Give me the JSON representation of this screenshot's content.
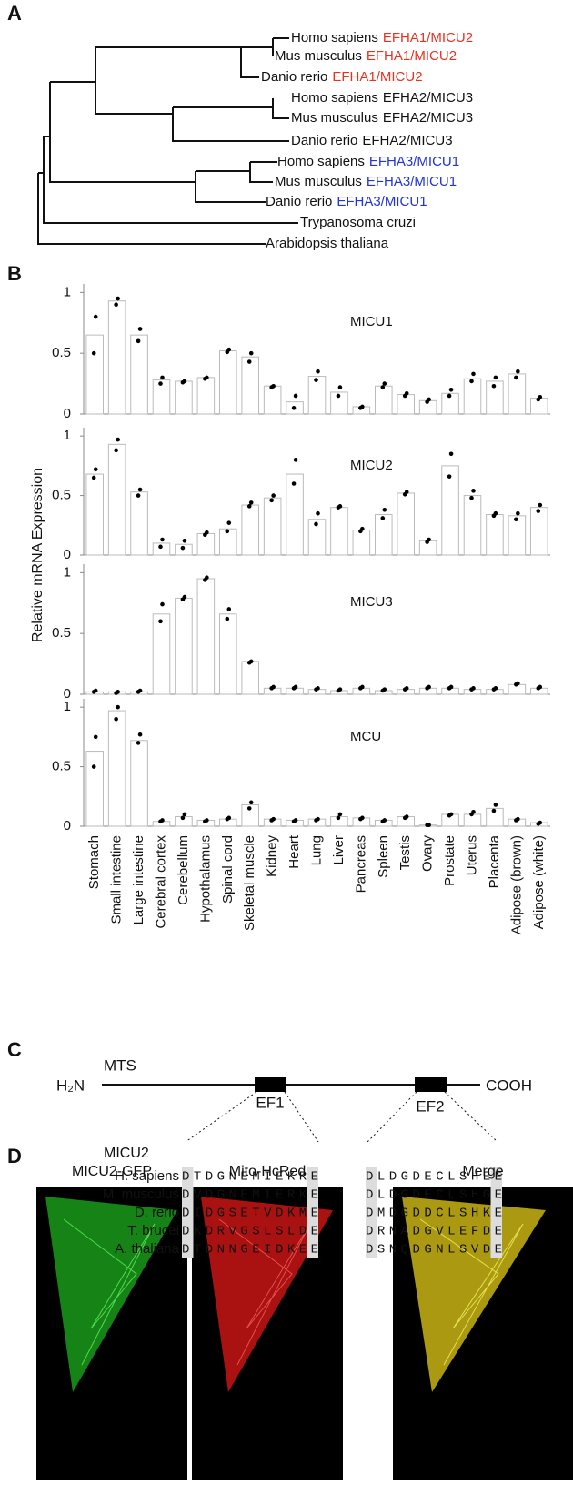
{
  "panel_labels": {
    "a": "A",
    "b": "B",
    "c": "C",
    "d": "D"
  },
  "tree": {
    "leaves": [
      {
        "species": "Homo sapiens",
        "gene": "EFHA1/MICU2",
        "gene_color": "#e8321e"
      },
      {
        "species": "Mus musculus",
        "gene": "EFHA1/MICU2",
        "gene_color": "#e8321e"
      },
      {
        "species": "Danio rerio",
        "gene": "EFHA1/MICU2",
        "gene_color": "#e8321e"
      },
      {
        "species": "Homo sapiens",
        "gene": "EFHA2/MICU3",
        "gene_color": "#111111"
      },
      {
        "species": "Mus musculus",
        "gene": "EFHA2/MICU3",
        "gene_color": "#111111"
      },
      {
        "species": "Danio rerio",
        "gene": "EFHA2/MICU3",
        "gene_color": "#111111"
      },
      {
        "species": "Homo sapiens",
        "gene": "EFHA3/MICU1",
        "gene_color": "#2233dd"
      },
      {
        "species": "Mus musculus",
        "gene": "EFHA3/MICU1",
        "gene_color": "#2233dd"
      },
      {
        "species": "Danio rerio",
        "gene": "EFHA3/MICU1",
        "gene_color": "#2233dd"
      },
      {
        "species": "Trypanosoma cruzi"
      },
      {
        "species": "Arabidopsis thaliana"
      }
    ]
  },
  "panel_b_y_label": "Relative  mRNA Expression",
  "chart_data": [
    {
      "type": "bar",
      "title": "MICU1",
      "ylim": [
        0,
        1.07
      ],
      "yticks": [
        0,
        0.5,
        1
      ],
      "values": [
        0.65,
        0.93,
        0.65,
        0.28,
        0.27,
        0.3,
        0.52,
        0.47,
        0.23,
        0.1,
        0.31,
        0.18,
        0.06,
        0.23,
        0.16,
        0.11,
        0.17,
        0.29,
        0.27,
        0.33,
        0.13
      ],
      "replicates": [
        [
          0.8,
          0.5
        ],
        [
          0.95,
          0.9
        ],
        [
          0.7,
          0.6
        ],
        [
          0.3,
          0.25
        ],
        [
          0.27,
          0.26
        ],
        [
          0.3,
          0.29
        ],
        [
          0.53,
          0.51
        ],
        [
          0.5,
          0.43
        ],
        [
          0.23,
          0.22
        ],
        [
          0.15,
          0.05
        ],
        [
          0.35,
          0.28
        ],
        [
          0.22,
          0.15
        ],
        [
          0.06,
          0.05
        ],
        [
          0.25,
          0.22
        ],
        [
          0.17,
          0.15
        ],
        [
          0.12,
          0.1
        ],
        [
          0.2,
          0.15
        ],
        [
          0.33,
          0.27
        ],
        [
          0.3,
          0.23
        ],
        [
          0.35,
          0.3
        ],
        [
          0.14,
          0.12
        ]
      ]
    },
    {
      "type": "bar",
      "title": "MICU2",
      "ylim": [
        0,
        1.07
      ],
      "yticks": [
        0,
        0.5,
        1
      ],
      "values": [
        0.68,
        0.93,
        0.53,
        0.1,
        0.09,
        0.18,
        0.22,
        0.42,
        0.48,
        0.68,
        0.3,
        0.4,
        0.21,
        0.34,
        0.52,
        0.12,
        0.75,
        0.5,
        0.34,
        0.33,
        0.4
      ],
      "replicates": [
        [
          0.72,
          0.65
        ],
        [
          0.97,
          0.88
        ],
        [
          0.55,
          0.5
        ],
        [
          0.13,
          0.07
        ],
        [
          0.12,
          0.06
        ],
        [
          0.19,
          0.17
        ],
        [
          0.27,
          0.2
        ],
        [
          0.44,
          0.41
        ],
        [
          0.5,
          0.46
        ],
        [
          0.8,
          0.6
        ],
        [
          0.35,
          0.26
        ],
        [
          0.41,
          0.4
        ],
        [
          0.22,
          0.2
        ],
        [
          0.38,
          0.31
        ],
        [
          0.53,
          0.51
        ],
        [
          0.13,
          0.11
        ],
        [
          0.85,
          0.66
        ],
        [
          0.54,
          0.48
        ],
        [
          0.35,
          0.33
        ],
        [
          0.35,
          0.3
        ],
        [
          0.42,
          0.37
        ]
      ]
    },
    {
      "type": "bar",
      "title": "MICU3",
      "ylim": [
        0,
        1.07
      ],
      "yticks": [
        0,
        0.5,
        1
      ],
      "values": [
        0.02,
        0.02,
        0.02,
        0.66,
        0.79,
        0.95,
        0.66,
        0.27,
        0.05,
        0.05,
        0.04,
        0.03,
        0.05,
        0.03,
        0.04,
        0.05,
        0.05,
        0.04,
        0.04,
        0.08,
        0.05
      ],
      "replicates": [
        [
          0.03,
          0.02
        ],
        [
          0.02,
          0.01
        ],
        [
          0.03,
          0.02
        ],
        [
          0.74,
          0.6
        ],
        [
          0.8,
          0.78
        ],
        [
          0.96,
          0.94
        ],
        [
          0.7,
          0.62
        ],
        [
          0.27,
          0.26
        ],
        [
          0.06,
          0.05
        ],
        [
          0.06,
          0.05
        ],
        [
          0.05,
          0.04
        ],
        [
          0.04,
          0.03
        ],
        [
          0.06,
          0.05
        ],
        [
          0.04,
          0.03
        ],
        [
          0.05,
          0.04
        ],
        [
          0.06,
          0.05
        ],
        [
          0.06,
          0.05
        ],
        [
          0.05,
          0.04
        ],
        [
          0.05,
          0.04
        ],
        [
          0.09,
          0.08
        ],
        [
          0.06,
          0.05
        ]
      ]
    },
    {
      "type": "bar",
      "title": "MCU",
      "ylim": [
        0,
        1.07
      ],
      "yticks": [
        0,
        0.5,
        1
      ],
      "categories": [
        "Stomach",
        "Small intestine",
        "Large intestine",
        "Cerebral cortex",
        "Cerebellum",
        "Hypothalamus",
        "Spinal cord",
        "Skeletal muscle",
        "Kidney",
        "Heart",
        "Lung",
        "Liver",
        "Pancreas",
        "Spleen",
        "Testis",
        "Ovary",
        "Prostate",
        "Uterus",
        "Placenta",
        "Adipose (brown)",
        "Adipose (white)"
      ],
      "values": [
        0.63,
        0.97,
        0.72,
        0.04,
        0.08,
        0.05,
        0.06,
        0.18,
        0.06,
        0.05,
        0.06,
        0.08,
        0.07,
        0.05,
        0.08,
        0.01,
        0.1,
        0.1,
        0.15,
        0.06,
        0.03
      ],
      "replicates": [
        [
          0.75,
          0.5
        ],
        [
          1.0,
          0.9
        ],
        [
          0.77,
          0.7
        ],
        [
          0.05,
          0.04
        ],
        [
          0.1,
          0.07
        ],
        [
          0.05,
          0.04
        ],
        [
          0.07,
          0.06
        ],
        [
          0.2,
          0.15
        ],
        [
          0.06,
          0.05
        ],
        [
          0.05,
          0.04
        ],
        [
          0.06,
          0.05
        ],
        [
          0.1,
          0.07
        ],
        [
          0.07,
          0.06
        ],
        [
          0.05,
          0.04
        ],
        [
          0.08,
          0.07
        ],
        [
          0.01,
          0.01
        ],
        [
          0.1,
          0.09
        ],
        [
          0.12,
          0.1
        ],
        [
          0.18,
          0.13
        ],
        [
          0.06,
          0.05
        ],
        [
          0.03,
          0.02
        ]
      ]
    }
  ],
  "panel_c": {
    "n_term": "H₂N",
    "mts": "MTS",
    "c_term": "COOH",
    "ef1": "EF1",
    "ef2": "EF2",
    "gene": "MICU2",
    "rows": [
      {
        "species": "H. sapiens",
        "ef1": "DTDGNEMIEKRE",
        "ef2": "DLDGDECLSHEE"
      },
      {
        "species": "M. musculus",
        "ef1": "DVDGNEMIERKE",
        "ef2": "DLDGDECLSHGE"
      },
      {
        "species": "D. rerio",
        "ef1": "DIDGSETVDKME",
        "ef2": "DMDGDDCLSHKE"
      },
      {
        "species": "T. brucei",
        "ef1": "DKDRVGSLSLDE",
        "ef2": "DRNADGVLEFDE"
      },
      {
        "species": "A. thaliana",
        "ef1": "DTDNNGEIDKEE",
        "ef2": "DSNQDGNLSVDE"
      }
    ]
  },
  "panel_d": {
    "titles": [
      "MICU2-GFP",
      "Mito-HcRed",
      "Merge"
    ]
  }
}
